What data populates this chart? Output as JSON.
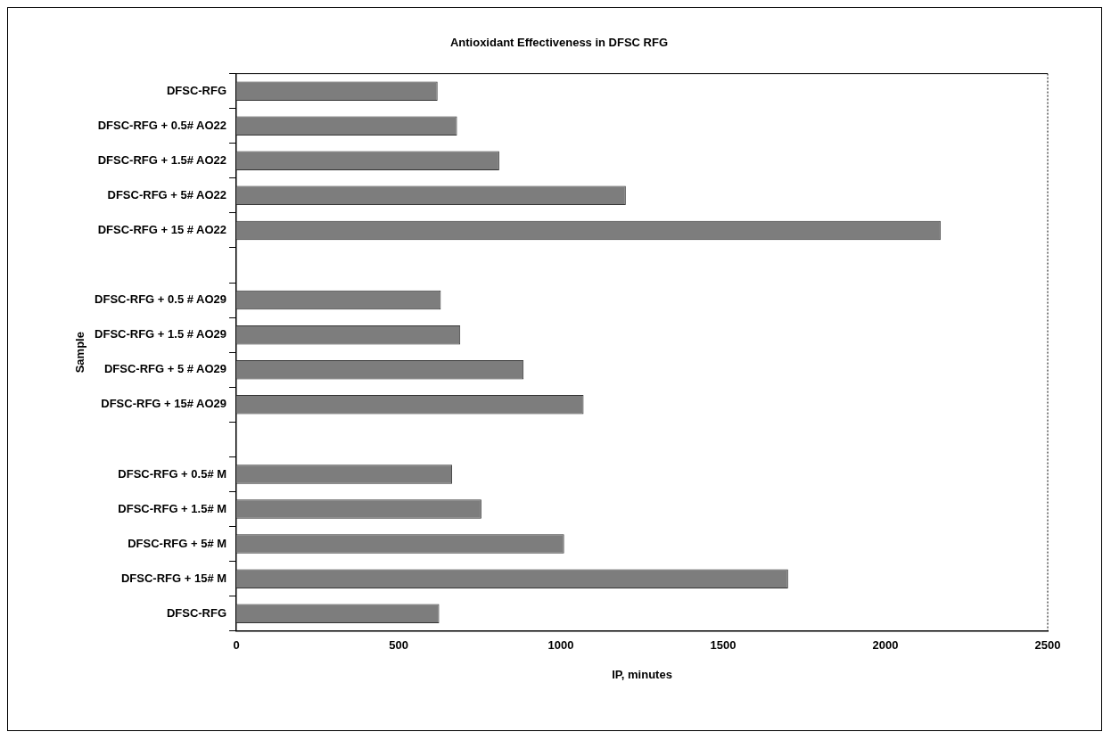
{
  "chart_data": {
    "type": "bar",
    "orientation": "horizontal",
    "title": "Antioxidant Effectiveness in DFSC RFG",
    "xlabel": "IP, minutes",
    "ylabel": "Sample",
    "categories": [
      "DFSC-RFG",
      "DFSC-RFG + 0.5# AO22",
      "DFSC-RFG + 1.5# AO22",
      "DFSC-RFG + 5# AO22",
      "DFSC-RFG + 15 # AO22",
      null,
      "DFSC-RFG + 0.5 # AO29",
      "DFSC-RFG + 1.5 # AO29",
      "DFSC-RFG + 5 # AO29",
      "DFSC-RFG + 15# AO29",
      null,
      "DFSC-RFG + 0.5# M",
      "DFSC-RFG + 1.5# M",
      "DFSC-RFG + 5# M",
      "DFSC-RFG + 15# M",
      "DFSC-RFG"
    ],
    "values": [
      620,
      680,
      810,
      1200,
      2170,
      null,
      630,
      690,
      885,
      1070,
      null,
      665,
      755,
      1010,
      1700,
      625
    ],
    "color": "#7d7d7d",
    "xlim": [
      0,
      2500
    ],
    "xticks": [
      0,
      500,
      1000,
      1500,
      2000,
      2500
    ],
    "grid": false,
    "legend": false
  }
}
